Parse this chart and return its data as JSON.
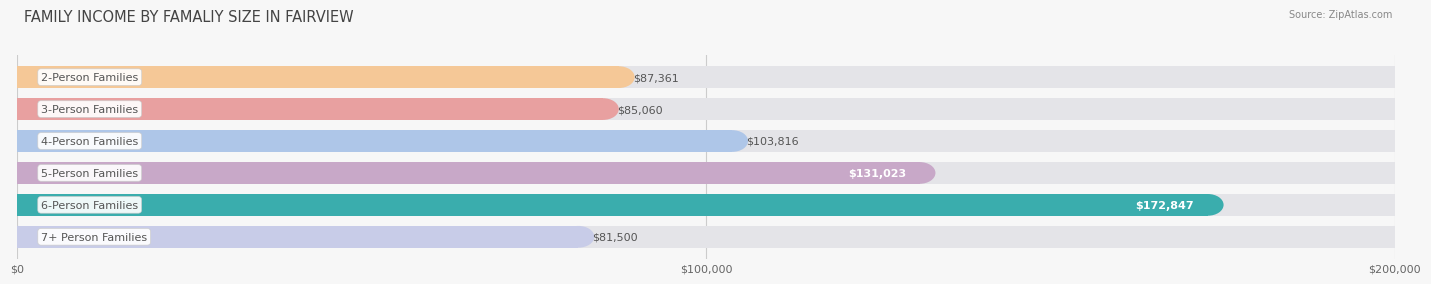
{
  "title": "FAMILY INCOME BY FAMALIY SIZE IN FAIRVIEW",
  "source": "Source: ZipAtlas.com",
  "categories": [
    "2-Person Families",
    "3-Person Families",
    "4-Person Families",
    "5-Person Families",
    "6-Person Families",
    "7+ Person Families"
  ],
  "values": [
    87361,
    85060,
    103816,
    131023,
    172847,
    81500
  ],
  "bar_colors": [
    "#f5c897",
    "#e8a0a0",
    "#aec6e8",
    "#c8a8c8",
    "#3aadad",
    "#c8cce8"
  ],
  "xlim": [
    0,
    200000
  ],
  "xticks": [
    0,
    100000,
    200000
  ],
  "xtick_labels": [
    "$0",
    "$100,000",
    "$200,000"
  ],
  "bar_height": 0.68,
  "background_color": "#f7f7f7",
  "bar_bg_color": "#e4e4e8",
  "value_labels": [
    "$87,361",
    "$85,060",
    "$103,816",
    "$131,023",
    "$172,847",
    "$81,500"
  ],
  "value_inside": [
    false,
    false,
    false,
    true,
    true,
    false
  ],
  "title_fontsize": 10.5,
  "label_fontsize": 8,
  "value_fontsize": 8,
  "tick_fontsize": 8,
  "label_box_color": "#ffffff",
  "label_text_color": "#555555",
  "value_color_outside": "#555555",
  "value_color_inside": "#ffffff"
}
